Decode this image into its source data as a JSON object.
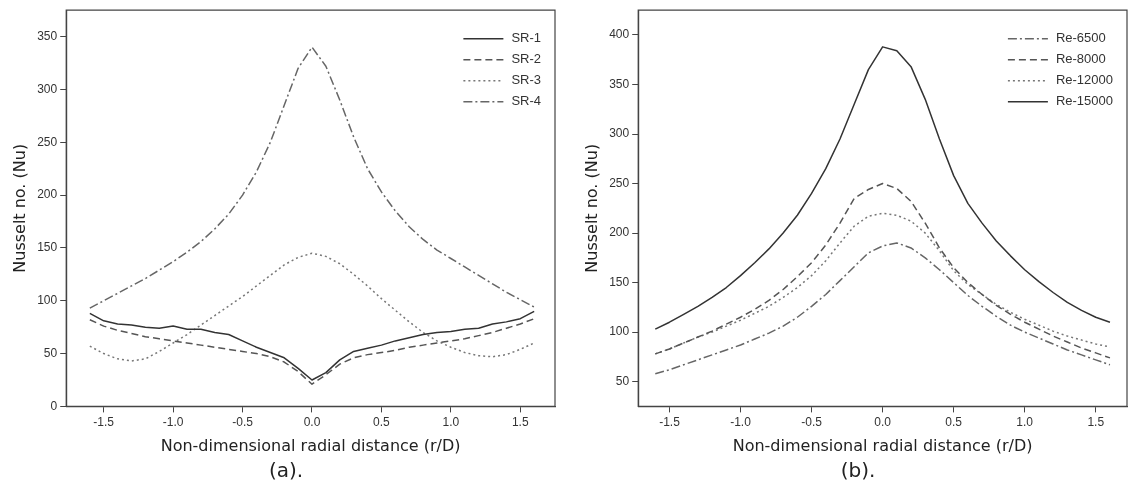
{
  "chart_data": [
    {
      "type": "line",
      "xlabel": "Non-dimensional radial distance (r/D)",
      "ylabel": "Nusselt no. (Nu)",
      "annotations": [
        "(a)."
      ],
      "x": [
        -1.6,
        -1.5,
        -1.4,
        -1.3,
        -1.2,
        -1.1,
        -1.0,
        -0.9,
        -0.8,
        -0.7,
        -0.6,
        -0.5,
        -0.4,
        -0.3,
        -0.2,
        -0.1,
        0,
        0.1,
        0.2,
        0.3,
        0.4,
        0.5,
        0.6,
        0.7,
        0.8,
        0.9,
        1.0,
        1.1,
        1.2,
        1.3,
        1.4,
        1.5,
        1.6
      ],
      "series": [
        {
          "name": "SR-1",
          "color": "#333333",
          "line_style": "solid",
          "values": [
            88,
            81,
            78,
            77,
            75,
            74,
            76,
            73,
            73,
            70,
            68,
            62,
            56,
            51,
            46,
            36,
            25,
            32,
            44,
            52,
            55,
            58,
            62,
            65,
            68,
            70,
            71,
            73,
            74,
            78,
            80,
            83,
            90
          ]
        },
        {
          "name": "SR-2",
          "color": "#555555",
          "line_style": "dashed",
          "values": [
            82,
            76,
            72,
            69,
            66,
            64,
            62,
            60,
            58,
            56,
            54,
            52,
            50,
            47,
            42,
            33,
            21,
            30,
            40,
            46,
            49,
            51,
            53,
            56,
            58,
            60,
            62,
            64,
            67,
            70,
            74,
            78,
            83
          ]
        },
        {
          "name": "SR-3",
          "color": "#777777",
          "line_style": "dotted",
          "values": [
            57,
            50,
            45,
            43,
            45,
            52,
            60,
            68,
            77,
            86,
            95,
            104,
            114,
            124,
            134,
            141,
            145,
            142,
            135,
            125,
            114,
            102,
            91,
            80,
            70,
            62,
            56,
            51,
            48,
            47,
            49,
            54,
            60
          ]
        },
        {
          "name": "SR-4",
          "color": "#666666",
          "line_style": "dashdot",
          "values": [
            93,
            100,
            107,
            114,
            121,
            129,
            137,
            146,
            156,
            168,
            182,
            200,
            222,
            250,
            285,
            320,
            340,
            322,
            290,
            255,
            225,
            203,
            185,
            170,
            158,
            148,
            140,
            132,
            124,
            116,
            108,
            101,
            94
          ]
        }
      ],
      "xlim": [
        -1.77,
        1.75
      ],
      "ylim": [
        0,
        375
      ],
      "xticks": [
        {
          "value": -1.5,
          "label": "-1.5"
        },
        {
          "value": -1,
          "label": "-1.0"
        },
        {
          "value": -0.5,
          "label": "-0.5"
        },
        {
          "value": 0,
          "label": "0.0"
        },
        {
          "value": 0.5,
          "label": "0.5"
        },
        {
          "value": 1,
          "label": "1.0"
        },
        {
          "value": 1.5,
          "label": "1.5"
        }
      ],
      "yticks": [
        0,
        50,
        100,
        150,
        200,
        250,
        300,
        350
      ],
      "legend": "top right"
    },
    {
      "type": "line",
      "xlabel": "Non-dimensional radial distance (r/D)",
      "ylabel": "Nusselt no. (Nu)",
      "annotations": [
        "(b)."
      ],
      "x": [
        -1.6,
        -1.5,
        -1.4,
        -1.3,
        -1.2,
        -1.1,
        -1.0,
        -0.9,
        -0.8,
        -0.7,
        -0.6,
        -0.5,
        -0.4,
        -0.3,
        -0.2,
        -0.1,
        0,
        0.1,
        0.2,
        0.3,
        0.4,
        0.5,
        0.6,
        0.7,
        0.8,
        0.9,
        1.0,
        1.1,
        1.2,
        1.3,
        1.4,
        1.5,
        1.6
      ],
      "series": [
        {
          "name": "Re-6500",
          "color": "#666666",
          "line_style": "dashdot",
          "values": [
            58,
            62,
            67,
            72,
            77,
            82,
            87,
            93,
            99,
            106,
            115,
            126,
            138,
            152,
            166,
            180,
            187,
            190,
            185,
            175,
            163,
            150,
            137,
            126,
            116,
            107,
            100,
            94,
            88,
            82,
            77,
            72,
            67
          ]
        },
        {
          "name": "Re-8000",
          "color": "#555555",
          "line_style": "dashed",
          "values": [
            78,
            83,
            89,
            95,
            101,
            108,
            115,
            123,
            132,
            143,
            156,
            170,
            188,
            210,
            235,
            244,
            250,
            245,
            232,
            210,
            185,
            165,
            150,
            138,
            127,
            118,
            110,
            103,
            96,
            90,
            84,
            79,
            74
          ]
        },
        {
          "name": "Re-12000",
          "color": "#777777",
          "line_style": "dotted",
          "values": [
            78,
            83,
            89,
            95,
            100,
            106,
            112,
            119,
            126,
            135,
            145,
            157,
            172,
            190,
            207,
            217,
            220,
            218,
            212,
            200,
            182,
            162,
            148,
            138,
            128,
            120,
            113,
            107,
            101,
            96,
            92,
            88,
            85
          ]
        },
        {
          "name": "Re-15000",
          "color": "#333333",
          "line_style": "solid",
          "values": [
            103,
            110,
            118,
            126,
            135,
            145,
            157,
            170,
            184,
            200,
            218,
            240,
            265,
            295,
            330,
            365,
            388,
            384,
            368,
            335,
            295,
            258,
            230,
            210,
            192,
            177,
            163,
            151,
            140,
            130,
            122,
            115,
            110
          ]
        }
      ],
      "xlim": [
        -1.72,
        1.72
      ],
      "ylim": [
        25,
        425
      ],
      "xticks": [
        {
          "value": -1.5,
          "label": "-1.5"
        },
        {
          "value": -1,
          "label": "-1.0"
        },
        {
          "value": -0.5,
          "label": "-0.5"
        },
        {
          "value": 0,
          "label": "0.0"
        },
        {
          "value": 0.5,
          "label": "0.5"
        },
        {
          "value": 1,
          "label": "1.0"
        },
        {
          "value": 1.5,
          "label": "1.5"
        }
      ],
      "yticks": [
        50,
        100,
        150,
        200,
        250,
        300,
        350,
        400
      ],
      "legend": "top right"
    }
  ]
}
